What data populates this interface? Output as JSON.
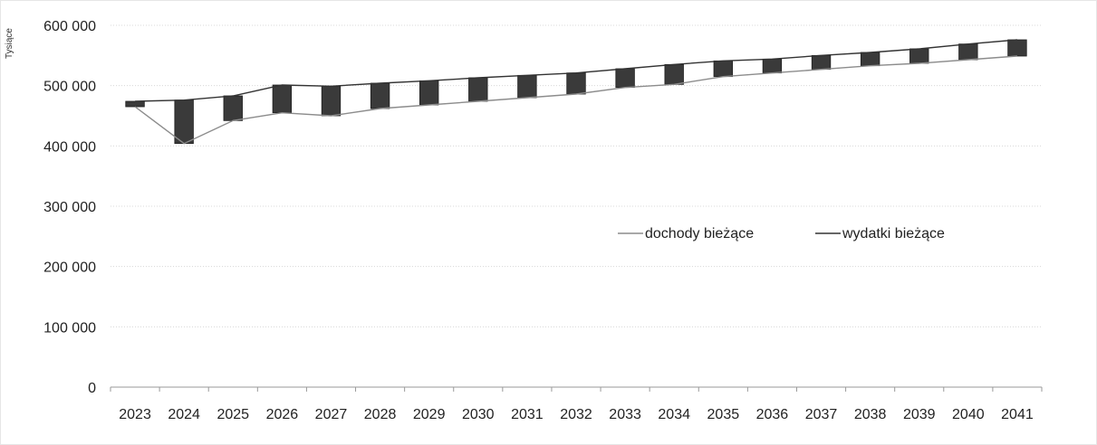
{
  "chart_data": {
    "type": "line",
    "title": "",
    "xlabel": "",
    "ylabel": "Tysiące",
    "categories": [
      "2023",
      "2024",
      "2025",
      "2026",
      "2027",
      "2028",
      "2029",
      "2030",
      "2031",
      "2032",
      "2033",
      "2034",
      "2035",
      "2036",
      "2037",
      "2038",
      "2039",
      "2040",
      "2041"
    ],
    "ylim": [
      0,
      600000
    ],
    "y_ticks": [
      0,
      100000,
      200000,
      300000,
      400000,
      500000,
      600000
    ],
    "y_tick_labels": [
      "0",
      "100 000",
      "200 000",
      "300 000",
      "400 000",
      "500 000",
      "600 000"
    ],
    "series": [
      {
        "name": "dochody bieżące",
        "color": "#8c8c8c",
        "values": [
          465000,
          404000,
          442000,
          455000,
          450000,
          462000,
          468000,
          474000,
          480000,
          486000,
          497000,
          502000,
          515000,
          521000,
          527000,
          533000,
          537000,
          543000,
          549000
        ]
      },
      {
        "name": "wydatki bieżące",
        "color": "#333333",
        "values": [
          474000,
          476000,
          483000,
          501000,
          499000,
          504000,
          508000,
          513000,
          517000,
          521000,
          528000,
          535000,
          541000,
          544000,
          550000,
          555000,
          561000,
          569000,
          576000
        ]
      }
    ],
    "bars": "vertical band between the two series at each year (up/down bars)",
    "grid": "horizontal dotted",
    "legend_placement": "center-right"
  }
}
